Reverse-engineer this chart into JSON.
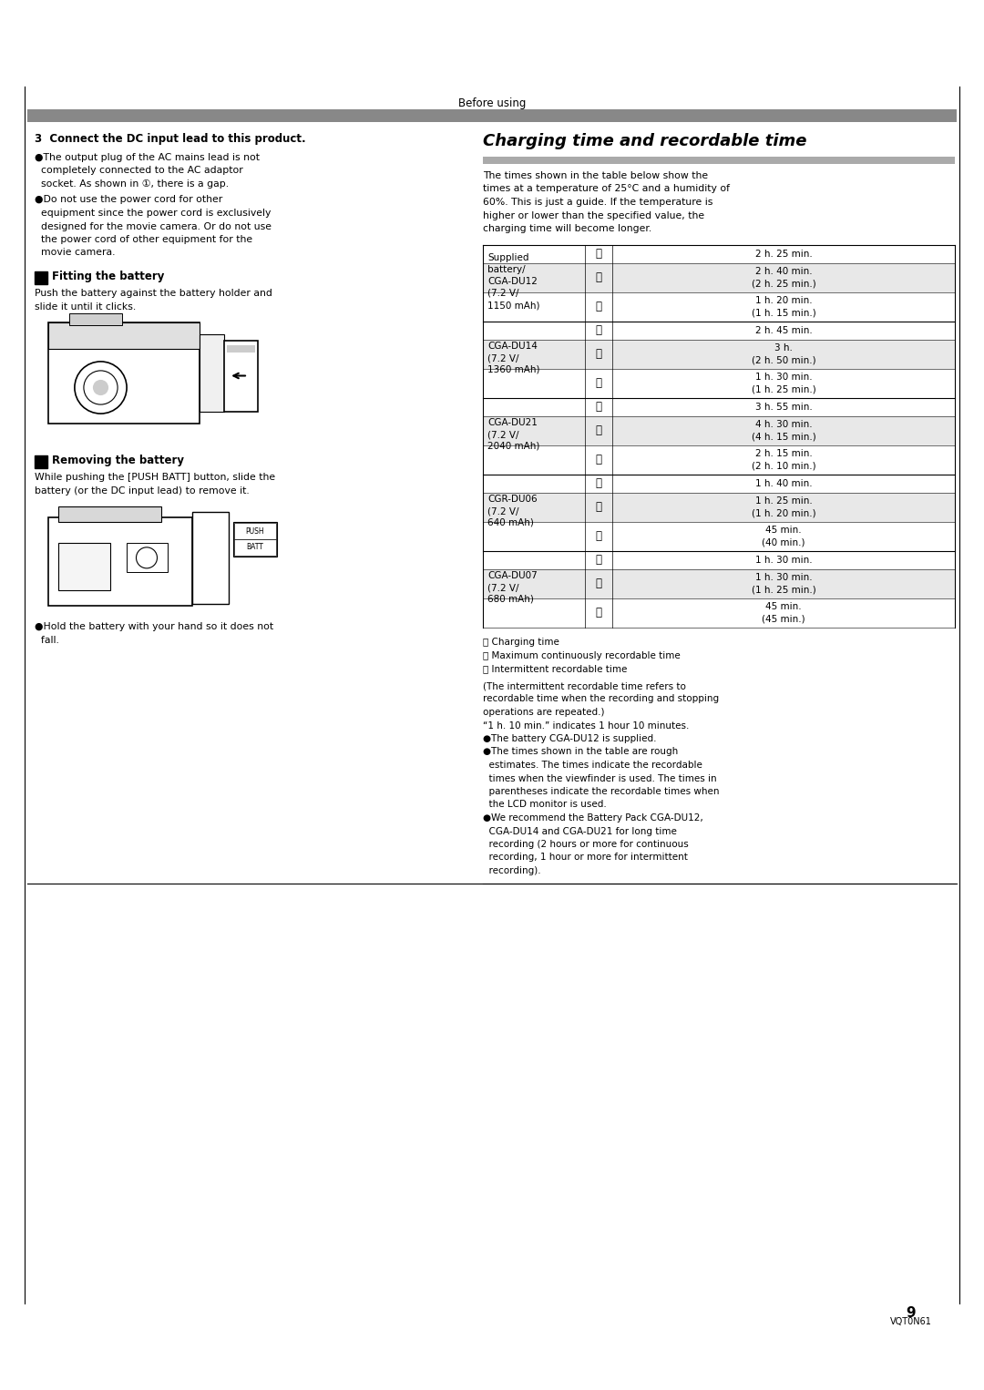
{
  "page_width": 10.8,
  "page_height": 15.26,
  "bg": "#ffffff",
  "header_text": "Before using",
  "gray_bar_color": "#888888",
  "gray_bar2_color": "#aaaaaa",
  "page_number": "9",
  "page_code": "VQT0N61",
  "sec3_heading": "3  Connect the DC input lead to this product.",
  "bullet1_lines": [
    "●The output plug of the AC mains lead is not",
    "  completely connected to the AC adaptor",
    "  socket. As shown in ①, there is a gap."
  ],
  "bullet2_lines": [
    "●Do not use the power cord for other",
    "  equipment since the power cord is exclusively",
    "  designed for the movie camera. Or do not use",
    "  the power cord of other equipment for the",
    "  movie camera."
  ],
  "fitting_heading": "Fitting the battery",
  "fitting_text_lines": [
    "Push the battery against the battery holder and",
    "slide it until it clicks."
  ],
  "removing_heading": "Removing the battery",
  "removing_text_lines": [
    "While pushing the [PUSH BATT] button, slide the",
    "battery (or the DC input lead) to remove it."
  ],
  "hold_bullet_lines": [
    "●Hold the battery with your hand so it does not",
    "  fall."
  ],
  "charging_title": "Charging time and recordable time",
  "charging_intro_lines": [
    "The times shown in the table below show the",
    "times at a temperature of 25°C and a humidity of",
    "60%. This is just a guide. If the temperature is",
    "higher or lower than the specified value, the",
    "charging time will become longer."
  ],
  "battery_groups": [
    {
      "label_lines": [
        "Supplied",
        "battery/",
        "CGA-DU12",
        "(7.2 V/",
        "1150 mAh)"
      ],
      "rows": [
        {
          "letter": "A",
          "time": "2 h. 25 min.",
          "time2": "",
          "shade": false
        },
        {
          "letter": "B",
          "time": "2 h. 40 min.",
          "time2": "(2 h. 25 min.)",
          "shade": true
        },
        {
          "letter": "C",
          "time": "1 h. 20 min.",
          "time2": "(1 h. 15 min.)",
          "shade": false
        }
      ]
    },
    {
      "label_lines": [
        "CGA-DU14",
        "(7.2 V/",
        "1360 mAh)"
      ],
      "rows": [
        {
          "letter": "A",
          "time": "2 h. 45 min.",
          "time2": "",
          "shade": false
        },
        {
          "letter": "B",
          "time": "3 h.",
          "time2": "(2 h. 50 min.)",
          "shade": true
        },
        {
          "letter": "C",
          "time": "1 h. 30 min.",
          "time2": "(1 h. 25 min.)",
          "shade": false
        }
      ]
    },
    {
      "label_lines": [
        "CGA-DU21",
        "(7.2 V/",
        "2040 mAh)"
      ],
      "rows": [
        {
          "letter": "A",
          "time": "3 h. 55 min.",
          "time2": "",
          "shade": false
        },
        {
          "letter": "B",
          "time": "4 h. 30 min.",
          "time2": "(4 h. 15 min.)",
          "shade": true
        },
        {
          "letter": "C",
          "time": "2 h. 15 min.",
          "time2": "(2 h. 10 min.)",
          "shade": false
        }
      ]
    },
    {
      "label_lines": [
        "CGR-DU06",
        "(7.2 V/",
        "640 mAh)"
      ],
      "rows": [
        {
          "letter": "A",
          "time": "1 h. 40 min.",
          "time2": "",
          "shade": false
        },
        {
          "letter": "B",
          "time": "1 h. 25 min.",
          "time2": "(1 h. 20 min.)",
          "shade": true
        },
        {
          "letter": "C",
          "time": "45 min.",
          "time2": "(40 min.)",
          "shade": false
        }
      ]
    },
    {
      "label_lines": [
        "CGA-DU07",
        "(7.2 V/",
        "680 mAh)"
      ],
      "rows": [
        {
          "letter": "A",
          "time": "1 h. 30 min.",
          "time2": "",
          "shade": false
        },
        {
          "letter": "B",
          "time": "1 h. 30 min.",
          "time2": "(1 h. 25 min.)",
          "shade": true
        },
        {
          "letter": "C",
          "time": "45 min.",
          "time2": "(45 min.)",
          "shade": false
        }
      ]
    }
  ],
  "legend": [
    [
      "A",
      "Charging time"
    ],
    [
      "B",
      "Maximum continuously recordable time"
    ],
    [
      "C",
      "Intermittent recordable time"
    ]
  ],
  "note_lines": [
    "(The intermittent recordable time refers to",
    "recordable time when the recording and stopping",
    "operations are repeated.)",
    "“1 h. 10 min.” indicates 1 hour 10 minutes.",
    "●The battery CGA-DU12 is supplied.",
    "●The times shown in the table are rough",
    "  estimates. The times indicate the recordable",
    "  times when the viewfinder is used. The times in",
    "  parentheses indicate the recordable times when",
    "  the LCD monitor is used.",
    "●We recommend the Battery Pack CGA-DU12,",
    "  CGA-DU14 and CGA-DU21 for long time",
    "  recording (2 hours or more for continuous",
    "  recording, 1 hour or more for intermittent",
    "  recording)."
  ]
}
